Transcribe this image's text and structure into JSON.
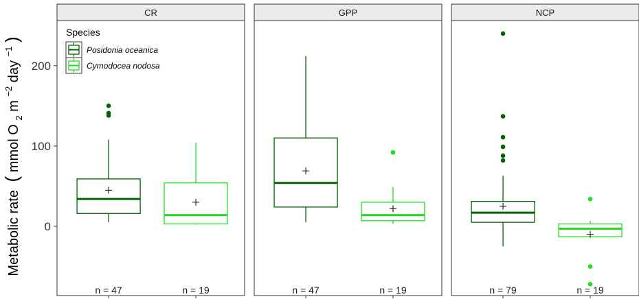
{
  "chart_data": {
    "type": "boxplot",
    "ylabel": "Metabolic rate (mmol O2 m−2 day−1)",
    "ylabel_parts": {
      "main": "Metabolic rate",
      "open": "(",
      "unit1": "mmol O",
      "sub": "2",
      "unit2": " m",
      "sup1": "−2",
      "unit3": " day",
      "sup2": "−1",
      "close": ")"
    },
    "y_ticks": [
      0,
      100,
      200
    ],
    "ylim": [
      -75,
      255
    ],
    "grid": false,
    "legend": {
      "title": "Species",
      "position": "top-left",
      "entries": [
        {
          "label": "Posidonia oceanica",
          "color": "#006400"
        },
        {
          "label": "Cymodocea nodosa",
          "color": "#22dd22"
        }
      ]
    },
    "facets": [
      {
        "label": "CR",
        "groups": [
          {
            "species": "Posidonia oceanica",
            "n_label": "n = 47",
            "min": 5,
            "q1": 16,
            "median": 34,
            "q3": 59,
            "max": 108,
            "mean": 45,
            "outliers": [
              138,
              141,
              150
            ]
          },
          {
            "species": "Cymodocea nodosa",
            "n_label": "n = 19",
            "min": 2,
            "q1": 3,
            "median": 14,
            "q3": 54,
            "max": 104,
            "mean": 30,
            "outliers": []
          }
        ]
      },
      {
        "label": "GPP",
        "groups": [
          {
            "species": "Posidonia oceanica",
            "n_label": "n = 47",
            "min": 5,
            "q1": 24,
            "median": 54,
            "q3": 110,
            "max": 212,
            "mean": 69,
            "outliers": []
          },
          {
            "species": "Cymodocea nodosa",
            "n_label": "n = 19",
            "min": 3,
            "q1": 7,
            "median": 14,
            "q3": 30,
            "max": 49,
            "mean": 22,
            "outliers": [
              92
            ]
          }
        ]
      },
      {
        "label": "NCP",
        "groups": [
          {
            "species": "Posidonia oceanica",
            "n_label": "n = 79",
            "min": -25,
            "q1": 5,
            "median": 17,
            "q3": 31,
            "max": 63,
            "mean": 25,
            "outliers": [
              82,
              88,
              99,
              111,
              137,
              240
            ]
          },
          {
            "species": "Cymodocea nodosa",
            "n_label": "n = 19",
            "min": -14,
            "q1": -13,
            "median": -3,
            "q3": 3,
            "max": 7,
            "mean": -10,
            "outliers": [
              34,
              -50,
              -72
            ]
          }
        ]
      }
    ]
  }
}
